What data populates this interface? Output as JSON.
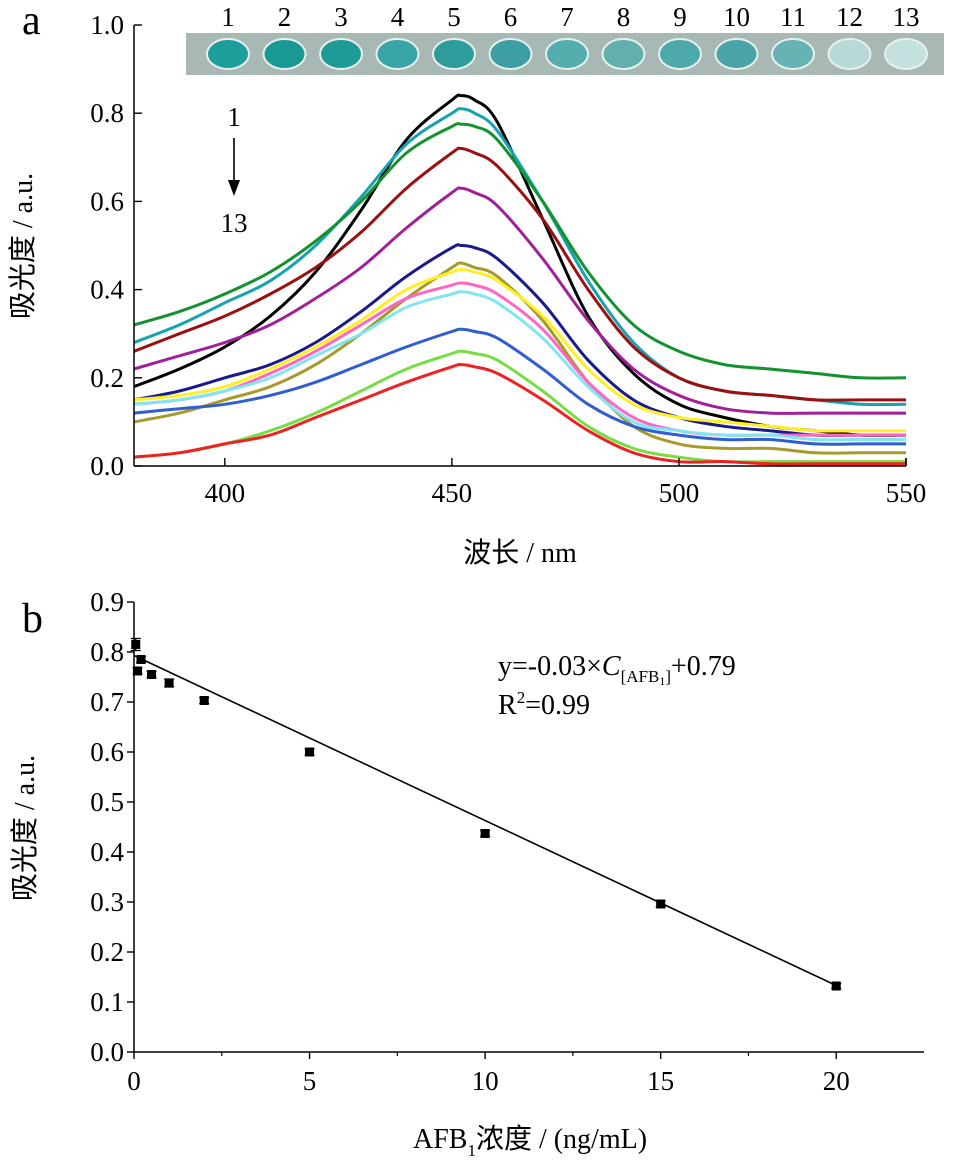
{
  "chart_data": [
    {
      "panel_label": "a",
      "type": "line",
      "xlabel": "波长 / nm",
      "ylabel": "吸光度 / a.u.",
      "xlim": [
        380,
        550
      ],
      "ylim": [
        0.0,
        1.0
      ],
      "xticks": [
        400,
        450,
        500,
        550
      ],
      "yticks": [
        "0.0",
        "0.2",
        "0.4",
        "0.6",
        "0.8",
        "1.0"
      ],
      "grid": false,
      "legend": "none",
      "well_labels": [
        "1",
        "2",
        "3",
        "4",
        "5",
        "6",
        "7",
        "8",
        "9",
        "10",
        "11",
        "12",
        "13"
      ],
      "well_colors": [
        "#1e9e9a",
        "#1a9893",
        "#1c9a93",
        "#3aa5a6",
        "#2f9c9c",
        "#3d9ea3",
        "#55aeae",
        "#62b0ae",
        "#4ea9aa",
        "#4aa3a5",
        "#66b3b3",
        "#b7d9d7",
        "#c3e1de"
      ],
      "arrow_annotation": {
        "from": "1",
        "to": "13"
      },
      "x": [
        380,
        390,
        400,
        410,
        420,
        430,
        440,
        450,
        452,
        455,
        460,
        470,
        480,
        490,
        500,
        510,
        520,
        530,
        540,
        550
      ],
      "series": [
        {
          "color": "#000000",
          "values": [
            0.18,
            0.22,
            0.27,
            0.34,
            0.44,
            0.58,
            0.74,
            0.83,
            0.84,
            0.83,
            0.78,
            0.56,
            0.34,
            0.21,
            0.14,
            0.11,
            0.09,
            0.08,
            0.07,
            0.07
          ]
        },
        {
          "color": "#17a2b0",
          "values": [
            0.28,
            0.32,
            0.37,
            0.42,
            0.5,
            0.61,
            0.73,
            0.8,
            0.81,
            0.8,
            0.76,
            0.6,
            0.42,
            0.28,
            0.2,
            0.17,
            0.16,
            0.15,
            0.14,
            0.14
          ]
        },
        {
          "color": "#14922f",
          "values": [
            0.32,
            0.35,
            0.39,
            0.44,
            0.51,
            0.6,
            0.71,
            0.77,
            0.775,
            0.77,
            0.74,
            0.6,
            0.44,
            0.32,
            0.26,
            0.23,
            0.22,
            0.21,
            0.2,
            0.2
          ]
        },
        {
          "color": "#9b1010",
          "values": [
            0.26,
            0.3,
            0.34,
            0.39,
            0.45,
            0.53,
            0.63,
            0.71,
            0.72,
            0.71,
            0.68,
            0.56,
            0.4,
            0.27,
            0.2,
            0.17,
            0.16,
            0.15,
            0.15,
            0.15
          ]
        },
        {
          "color": "#a0209a",
          "values": [
            0.22,
            0.25,
            0.28,
            0.32,
            0.38,
            0.45,
            0.54,
            0.62,
            0.63,
            0.62,
            0.59,
            0.47,
            0.33,
            0.22,
            0.16,
            0.13,
            0.12,
            0.12,
            0.12,
            0.12
          ]
        },
        {
          "color": "#1a1a8c",
          "values": [
            0.15,
            0.17,
            0.2,
            0.23,
            0.28,
            0.35,
            0.43,
            0.495,
            0.5,
            0.495,
            0.47,
            0.37,
            0.24,
            0.15,
            0.11,
            0.09,
            0.08,
            0.07,
            0.07,
            0.07
          ]
        },
        {
          "color": "#a89a2a",
          "values": [
            0.1,
            0.12,
            0.15,
            0.18,
            0.23,
            0.3,
            0.38,
            0.45,
            0.46,
            0.45,
            0.43,
            0.33,
            0.19,
            0.09,
            0.05,
            0.04,
            0.04,
            0.03,
            0.03,
            0.03
          ]
        },
        {
          "color": "#ffee22",
          "values": [
            0.15,
            0.16,
            0.18,
            0.22,
            0.27,
            0.33,
            0.4,
            0.44,
            0.445,
            0.44,
            0.42,
            0.34,
            0.22,
            0.14,
            0.11,
            0.1,
            0.09,
            0.08,
            0.08,
            0.08
          ]
        },
        {
          "color": "#ff66c4",
          "values": [
            0.14,
            0.15,
            0.17,
            0.21,
            0.26,
            0.32,
            0.38,
            0.41,
            0.415,
            0.41,
            0.39,
            0.31,
            0.19,
            0.11,
            0.08,
            0.07,
            0.07,
            0.07,
            0.07,
            0.07
          ]
        },
        {
          "color": "#80e6f0",
          "values": [
            0.14,
            0.15,
            0.17,
            0.2,
            0.25,
            0.3,
            0.36,
            0.39,
            0.395,
            0.39,
            0.37,
            0.29,
            0.18,
            0.1,
            0.08,
            0.07,
            0.07,
            0.06,
            0.06,
            0.06
          ]
        },
        {
          "color": "#2f5ed0",
          "values": [
            0.12,
            0.13,
            0.14,
            0.16,
            0.19,
            0.23,
            0.27,
            0.305,
            0.31,
            0.305,
            0.29,
            0.22,
            0.14,
            0.09,
            0.07,
            0.06,
            0.06,
            0.05,
            0.05,
            0.05
          ]
        },
        {
          "color": "#77dd44",
          "values": [
            0.02,
            0.03,
            0.05,
            0.08,
            0.12,
            0.17,
            0.22,
            0.255,
            0.26,
            0.255,
            0.24,
            0.17,
            0.09,
            0.04,
            0.02,
            0.01,
            0.01,
            0.01,
            0.01,
            0.01
          ]
        },
        {
          "color": "#ee2222",
          "values": [
            0.02,
            0.03,
            0.05,
            0.07,
            0.11,
            0.15,
            0.19,
            0.225,
            0.23,
            0.225,
            0.21,
            0.15,
            0.08,
            0.03,
            0.01,
            0.01,
            0.005,
            0.005,
            0.005,
            0.005
          ]
        }
      ]
    },
    {
      "panel_label": "b",
      "type": "scatter",
      "xlabel_main": "AFB",
      "xlabel_sub": "1",
      "xlabel_rest": "浓度 / (ng/mL)",
      "ylabel": "吸光度 / a.u.",
      "xlim": [
        0,
        22.5
      ],
      "ylim": [
        0.0,
        0.9
      ],
      "xticks": [
        0,
        5,
        10,
        15,
        20
      ],
      "yticks": [
        "0.0",
        "0.1",
        "0.2",
        "0.3",
        "0.4",
        "0.5",
        "0.6",
        "0.7",
        "0.8",
        "0.9"
      ],
      "grid": false,
      "legend": "none",
      "points": [
        {
          "x": 0.05,
          "y": 0.815,
          "err": 0.012
        },
        {
          "x": 0.1,
          "y": 0.762,
          "err": 0.006
        },
        {
          "x": 0.2,
          "y": 0.785,
          "err": 0.006
        },
        {
          "x": 0.5,
          "y": 0.755,
          "err": 0.006
        },
        {
          "x": 1,
          "y": 0.738,
          "err": 0.008
        },
        {
          "x": 2,
          "y": 0.703,
          "err": 0.006
        },
        {
          "x": 5,
          "y": 0.6,
          "err": 0.006
        },
        {
          "x": 10,
          "y": 0.437,
          "err": 0.006
        },
        {
          "x": 15,
          "y": 0.296,
          "err": 0.006
        },
        {
          "x": 20,
          "y": 0.132,
          "err": 0.005
        }
      ],
      "fit": {
        "slope": -0.033,
        "intercept": 0.793,
        "x_range": [
          0,
          20
        ]
      },
      "equation": {
        "prefix": "y=-0.03×",
        "c": "C",
        "sub_open": "[AFB",
        "sub_sub": "1",
        "sub_close": "]",
        "suffix": "+0.79"
      },
      "r2": {
        "r": "R",
        "sup": "2",
        "value": "=0.99"
      }
    }
  ]
}
